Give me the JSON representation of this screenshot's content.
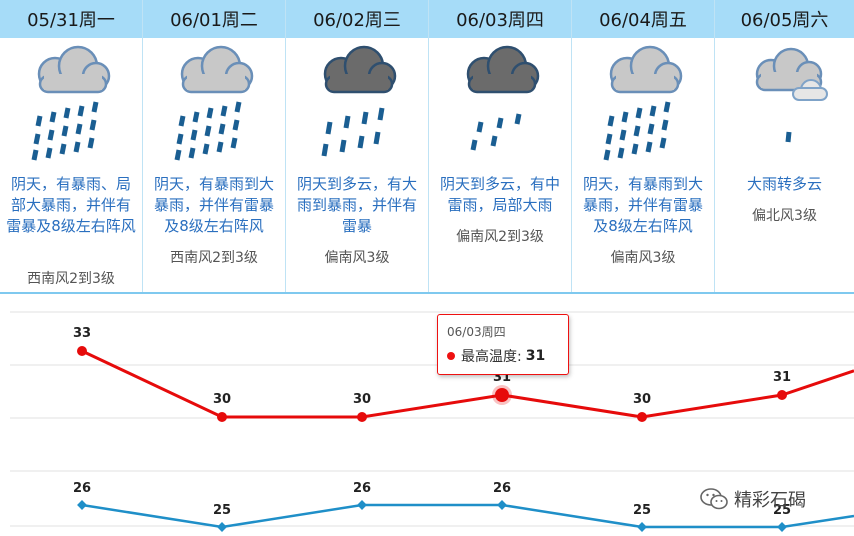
{
  "days": [
    {
      "date": "05/31周一",
      "icon": "heavy-rain-icon",
      "desc": "阴天，有暴雨、局部大暴雨，并伴有雷暴及8级左右阵风",
      "wind": "西南风2到3级"
    },
    {
      "date": "06/01周二",
      "icon": "heavy-rain-icon",
      "desc": "阴天，有暴雨到大暴雨，并伴有雷暴及8级左右阵风",
      "wind": "西南风2到3级"
    },
    {
      "date": "06/02周三",
      "icon": "thunder-rain-icon",
      "desc": "阴天到多云，有大雨到暴雨，并伴有雷暴",
      "wind": "偏南风3级"
    },
    {
      "date": "06/03周四",
      "icon": "moderate-rain-icon",
      "desc": "阴天到多云，有中雷雨，局部大雨",
      "wind": "偏南风2到3级"
    },
    {
      "date": "06/04周五",
      "icon": "heavy-rain-icon",
      "desc": "阴天，有暴雨到大暴雨，并伴有雷暴及8级左右阵风",
      "wind": "偏南风3级"
    },
    {
      "date": "06/05周六",
      "icon": "rain-to-cloudy-icon",
      "desc": "大雨转多云",
      "wind": "偏北风3级"
    }
  ],
  "chart_data": {
    "type": "line",
    "categories": [
      "05/31周一",
      "06/01周二",
      "06/02周三",
      "06/03周四",
      "06/04周五",
      "06/05周六"
    ],
    "series": [
      {
        "name": "最高温度",
        "values": [
          33,
          30,
          30,
          31,
          30,
          31
        ],
        "color": "#e60b0b"
      },
      {
        "name": "",
        "values": [
          26,
          25,
          26,
          26,
          25,
          25
        ],
        "color": "#1f8fc8"
      }
    ],
    "grid": true
  },
  "tooltip": {
    "date": "06/03周四",
    "label": "最高温度:",
    "value": "31"
  },
  "watermark": {
    "text": "精彩石碣"
  }
}
